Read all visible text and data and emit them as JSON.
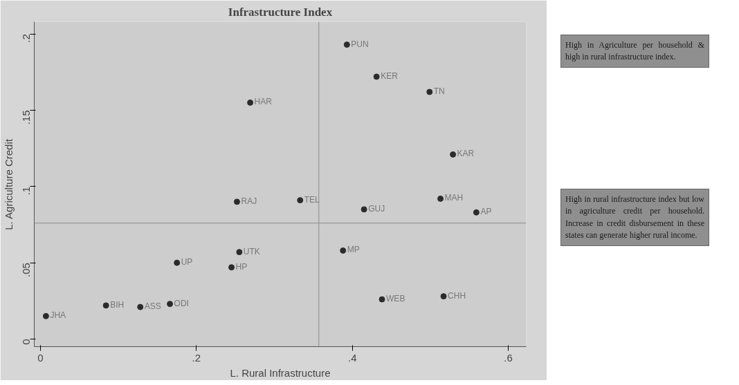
{
  "chart_data": {
    "type": "scatter",
    "title": "Infrastructure Index",
    "xlabel": "L. Rural Infrastructure",
    "ylabel": "L. Agriculture Credit",
    "x": [
      0.393,
      0.431,
      0.499,
      0.269,
      0.529,
      0.252,
      0.333,
      0.415,
      0.513,
      0.559,
      0.255,
      0.175,
      0.245,
      0.388,
      0.438,
      0.517,
      0.007,
      0.084,
      0.128,
      0.166
    ],
    "values": [
      0.193,
      0.172,
      0.162,
      0.155,
      0.121,
      0.09,
      0.091,
      0.085,
      0.092,
      0.083,
      0.057,
      0.05,
      0.047,
      0.058,
      0.026,
      0.028,
      0.015,
      0.022,
      0.021,
      0.023
    ],
    "color": "#2b2b2b",
    "marker": "circle",
    "xlim": [
      -0.008,
      0.623
    ],
    "ylim": [
      -0.005,
      0.208
    ],
    "xticks": [
      {
        "value": 0,
        "label": "0"
      },
      {
        "value": 0.2,
        "label": ".2"
      },
      {
        "value": 0.4,
        "label": ".4"
      },
      {
        "value": 0.6,
        "label": ".6"
      }
    ],
    "yticks": [
      {
        "value": 0,
        "label": "0"
      },
      {
        "value": 0.05,
        "label": ".05"
      },
      {
        "value": 0.1,
        "label": ".1"
      },
      {
        "value": 0.15,
        "label": ".15"
      },
      {
        "value": 0.2,
        "label": ".2"
      }
    ],
    "grid": false,
    "ref_lines": [
      {
        "axis": "x",
        "value": 0.357,
        "label": null,
        "color": "#8a8a8a"
      },
      {
        "axis": "y",
        "value": 0.076,
        "label": null,
        "color": "#8a8a8a"
      }
    ],
    "annotations": [
      {
        "text": "PUN",
        "x": 0.393,
        "y": 0.193
      },
      {
        "text": "KER",
        "x": 0.431,
        "y": 0.172
      },
      {
        "text": "TN",
        "x": 0.499,
        "y": 0.162
      },
      {
        "text": "HAR",
        "x": 0.269,
        "y": 0.155
      },
      {
        "text": "KAR",
        "x": 0.529,
        "y": 0.121
      },
      {
        "text": "RAJ",
        "x": 0.252,
        "y": 0.09
      },
      {
        "text": "TEL",
        "x": 0.333,
        "y": 0.091
      },
      {
        "text": "GUJ",
        "x": 0.415,
        "y": 0.085
      },
      {
        "text": "MAH",
        "x": 0.513,
        "y": 0.092
      },
      {
        "text": "AP",
        "x": 0.559,
        "y": 0.083
      },
      {
        "text": "UTK",
        "x": 0.255,
        "y": 0.057
      },
      {
        "text": "UP",
        "x": 0.175,
        "y": 0.05
      },
      {
        "text": "HP",
        "x": 0.245,
        "y": 0.047
      },
      {
        "text": "MP",
        "x": 0.388,
        "y": 0.058
      },
      {
        "text": "WEB",
        "x": 0.438,
        "y": 0.026
      },
      {
        "text": "CHH",
        "x": 0.517,
        "y": 0.028
      },
      {
        "text": "JHA",
        "x": 0.007,
        "y": 0.015
      },
      {
        "text": "BIH",
        "x": 0.084,
        "y": 0.022
      },
      {
        "text": "ASS",
        "x": 0.128,
        "y": 0.021
      },
      {
        "text": "ODI",
        "x": 0.166,
        "y": 0.023
      },
      "High in Agriculture per household & high in rural infrastructure index.",
      "High in rural infrastructure index but low in agriculture credit per household. Increase in credit disbursement in these states can generate higher rural income."
    ]
  }
}
